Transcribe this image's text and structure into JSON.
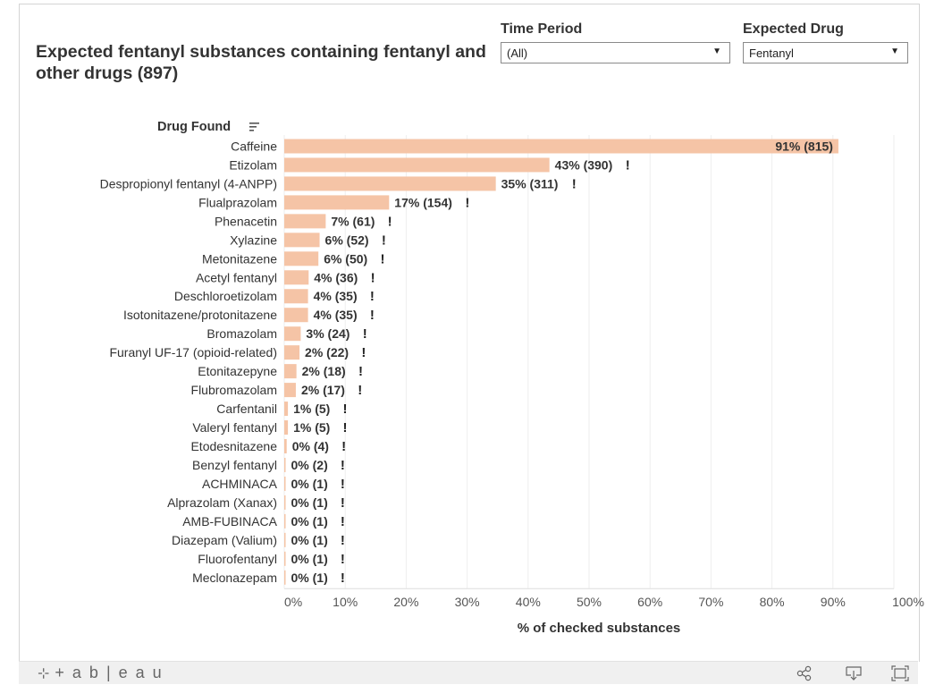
{
  "title": "Expected fentanyl substances containing fentanyl and other drugs (897)",
  "filters": {
    "time_period": {
      "label": "Time Period",
      "value": "(All)"
    },
    "expected_drug": {
      "label": "Expected Drug",
      "value": "Fentanyl"
    }
  },
  "footer": {
    "logo_text": "+ a b | e a u",
    "logo_mark": "⊹"
  },
  "colors": {
    "bar": "#f5c4a6",
    "grid": "#eeeeee",
    "text": "#333333"
  },
  "chart_data": {
    "type": "bar",
    "orientation": "horizontal",
    "row_header": "Drug Found",
    "xlabel": "% of checked substances",
    "xlim": [
      0,
      100
    ],
    "x_ticks": [
      "0%",
      "10%",
      "20%",
      "30%",
      "40%",
      "50%",
      "60%",
      "70%",
      "80%",
      "90%",
      "100%"
    ],
    "x_tick_values": [
      0,
      10,
      20,
      30,
      40,
      50,
      60,
      70,
      80,
      90,
      100
    ],
    "grid": "vertical",
    "categories": [
      "Caffeine",
      "Etizolam",
      "Despropionyl fentanyl (4-ANPP)",
      "Flualprazolam",
      "Phenacetin",
      "Xylazine",
      "Metonitazene",
      "Acetyl fentanyl",
      "Deschloroetizolam",
      "Isotonitazene/protonitazene",
      "Bromazolam",
      "Furanyl UF-17 (opioid-related)",
      "Etonitazepyne",
      "Flubromazolam",
      "Carfentanil",
      "Valeryl fentanyl",
      "Etodesnitazene",
      "Benzyl fentanyl",
      "ACHMINACA",
      "Alprazolam (Xanax)",
      "AMB-FUBINACA",
      "Diazepam (Valium)",
      "Fluorofentanyl",
      "Meclonazepam"
    ],
    "values": [
      90.9,
      43.5,
      34.7,
      17.2,
      6.8,
      5.8,
      5.6,
      4.0,
      3.9,
      3.9,
      2.7,
      2.5,
      2.0,
      1.9,
      0.6,
      0.6,
      0.4,
      0.2,
      0.1,
      0.1,
      0.1,
      0.1,
      0.1,
      0.1
    ],
    "labels": [
      "91% (815)",
      "43% (390)",
      "35% (311)",
      "17% (154)",
      "7% (61)",
      "6% (52)",
      "6% (50)",
      "4% (36)",
      "4% (35)",
      "4% (35)",
      "3% (24)",
      "2% (22)",
      "2% (18)",
      "2% (17)",
      "1% (5)",
      "1% (5)",
      "0% (4)",
      "0% (2)",
      "0% (1)",
      "0% (1)",
      "0% (1)",
      "0% (1)",
      "0% (1)",
      "0% (1)"
    ],
    "flags": [
      false,
      true,
      true,
      true,
      true,
      true,
      true,
      true,
      true,
      true,
      true,
      true,
      true,
      true,
      true,
      true,
      true,
      true,
      true,
      true,
      true,
      true,
      true,
      true
    ],
    "flag_text": "!"
  }
}
